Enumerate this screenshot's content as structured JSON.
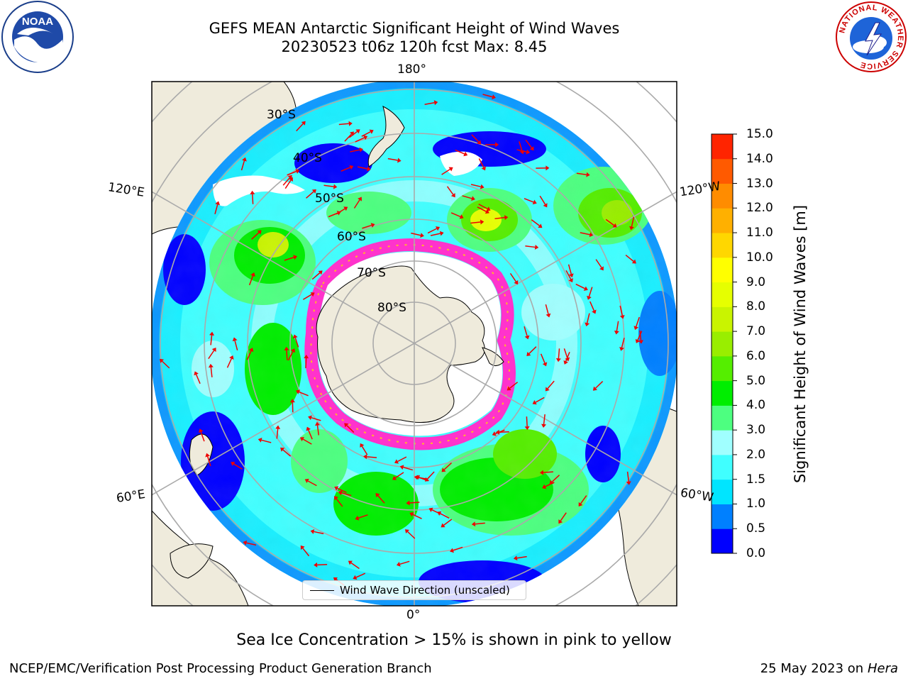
{
  "title": {
    "line1": "GEFS MEAN Antarctic Significant Height of Wind Waves",
    "line2": "20230523 t06z 120h fcst   Max: 8.45"
  },
  "logos": {
    "left": {
      "icon": "noaa-logo",
      "text": "NOAA"
    },
    "right": {
      "icon": "national-weather-service-logo",
      "text": "NATIONAL WEATHER SERVICE"
    }
  },
  "map": {
    "projection": "south-polar-stereographic",
    "longitude_labels": {
      "top": "180°",
      "bottom": "0°",
      "upper_left": "120°E",
      "upper_right": "120°W",
      "lower_left": "60°E",
      "lower_right": "60°W"
    },
    "latitude_labels": [
      "30°S",
      "40°S",
      "50°S",
      "60°S",
      "70°S",
      "80°S"
    ],
    "max_value": 8.45,
    "land_color": "#efebdc",
    "sea_ice_color": "#ff33cc"
  },
  "colorbar": {
    "label": "Significant Height of Wind Waves [m]",
    "ticks": [
      "0.0",
      "0.5",
      "1.0",
      "1.5",
      "2.0",
      "3.0",
      "4.0",
      "5.0",
      "6.0",
      "7.0",
      "8.0",
      "9.0",
      "10.0",
      "11.0",
      "12.0",
      "13.0",
      "14.0",
      "15.0"
    ],
    "colors": [
      "#0000ff",
      "#0080ff",
      "#00e5ff",
      "#40ffff",
      "#a0ffff",
      "#4dff80",
      "#00ee00",
      "#55ee00",
      "#99ee00",
      "#c9f400",
      "#e6ff00",
      "#ffff00",
      "#ffd700",
      "#ffb000",
      "#ff8c00",
      "#ff5a00",
      "#ff2400"
    ]
  },
  "legend": {
    "label": "Wind Wave Direction (unscaled)"
  },
  "note": "Sea Ice Concentration > 15% is shown in pink to yellow",
  "footer": {
    "left": "NCEP/EMC/Verification Post Processing Product Generation Branch",
    "right_prefix": "25 May 2023 on",
    "right_host": "Hera"
  }
}
